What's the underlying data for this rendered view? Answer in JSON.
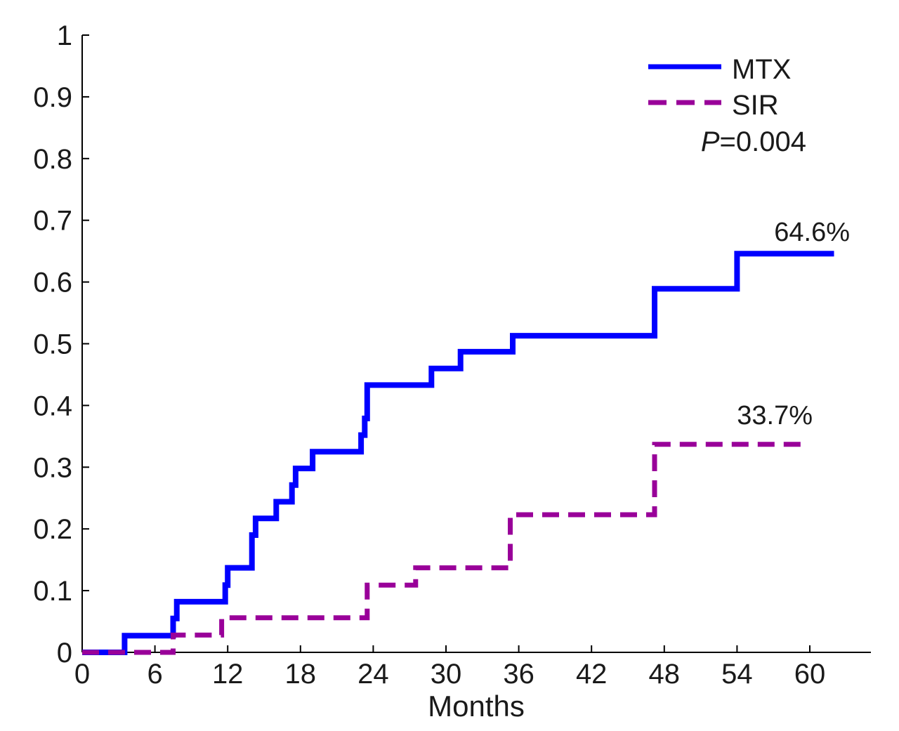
{
  "chart_data": {
    "type": "line",
    "title": "",
    "xlabel": "Months",
    "ylabel": "",
    "xlim": [
      0,
      62
    ],
    "ylim": [
      0,
      1
    ],
    "x_ticks": [
      0,
      6,
      12,
      18,
      24,
      30,
      36,
      42,
      48,
      54,
      60
    ],
    "x_tick_labels": [
      "0",
      "6",
      "12",
      "18",
      "24",
      "30",
      "36",
      "42",
      "48",
      "54",
      "60"
    ],
    "y_ticks": [
      0,
      0.1,
      0.2,
      0.3,
      0.4,
      0.5,
      0.6,
      0.7,
      0.8,
      0.9,
      1
    ],
    "y_tick_labels": [
      "0",
      "0.1",
      "0.2",
      "0.3",
      "0.4",
      "0.5",
      "0.6",
      "0.7",
      "0.8",
      "0.9",
      "1"
    ],
    "grid": false,
    "legend_position": "top-right",
    "series": [
      {
        "name": "MTX",
        "style": "solid",
        "color": "#0000ff",
        "step": true,
        "x": [
          0,
          3.5,
          7.5,
          7.8,
          11.8,
          12,
          14,
          14.3,
          16,
          17.3,
          17.6,
          19,
          23,
          23.3,
          23.5,
          28.8,
          31.2,
          35.5,
          47.2,
          54,
          62
        ],
        "y": [
          0,
          0.027,
          0.055,
          0.082,
          0.109,
          0.137,
          0.19,
          0.217,
          0.244,
          0.271,
          0.298,
          0.325,
          0.352,
          0.379,
          0.433,
          0.46,
          0.487,
          0.513,
          0.589,
          0.646,
          0.646
        ]
      },
      {
        "name": "SIR",
        "style": "dashed",
        "color": "#990099",
        "step": true,
        "x": [
          0,
          7.5,
          11.5,
          23.5,
          27.5,
          35.3,
          47.2,
          59.8
        ],
        "y": [
          0,
          0.028,
          0.056,
          0.109,
          0.137,
          0.223,
          0.337,
          0.337
        ]
      }
    ],
    "annotations": [
      {
        "text": "P=0.004",
        "italic_prefix": "P",
        "rest": "=0.004"
      },
      {
        "text": "64.6%",
        "series": "MTX"
      },
      {
        "text": "33.7%",
        "series": "SIR"
      }
    ]
  }
}
